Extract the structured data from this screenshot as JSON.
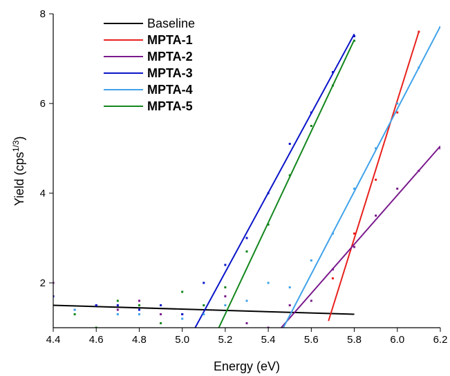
{
  "chart_data": {
    "type": "scatter",
    "xlabel": "Energy (eV)",
    "ylabel_main": "Yield (cps",
    "ylabel_sup": "1/3",
    "ylabel_end": ")",
    "xlim": [
      4.4,
      6.2
    ],
    "ylim": [
      1.0,
      8.0
    ],
    "xticks": [
      "4.4",
      "4.6",
      "4.8",
      "5.0",
      "5.2",
      "5.4",
      "5.6",
      "5.8",
      "6.0",
      "6.2"
    ],
    "yticks": [
      "2",
      "4",
      "6",
      "8"
    ],
    "legend_position": "top-left",
    "series": [
      {
        "name": "Baseline",
        "color": "#000000",
        "bold": false,
        "fit": [
          [
            4.4,
            1.5
          ],
          [
            5.8,
            1.3
          ]
        ],
        "points": []
      },
      {
        "name": "MPTA-1",
        "color": "#e8201c",
        "bold": true,
        "fit": [
          [
            5.68,
            1.15
          ],
          [
            6.1,
            7.6
          ]
        ],
        "points": [
          [
            5.7,
            2.1
          ],
          [
            5.8,
            3.1
          ],
          [
            5.9,
            4.3
          ],
          [
            6.0,
            5.8
          ],
          [
            6.1,
            7.6
          ]
        ]
      },
      {
        "name": "MPTA-2",
        "color": "#7a1a8c",
        "bold": true,
        "fit": [
          [
            5.46,
            1.0
          ],
          [
            6.2,
            5.05
          ]
        ],
        "points": [
          [
            4.4,
            2.0
          ],
          [
            4.5,
            1.4
          ],
          [
            4.6,
            1.5
          ],
          [
            4.7,
            1.4
          ],
          [
            4.8,
            1.6
          ],
          [
            4.9,
            1.3
          ],
          [
            5.0,
            1.3
          ],
          [
            5.2,
            1.7
          ],
          [
            5.3,
            1.1
          ],
          [
            5.4,
            1.0
          ],
          [
            5.5,
            1.5
          ],
          [
            5.6,
            1.6
          ],
          [
            5.7,
            2.3
          ],
          [
            5.8,
            2.8
          ],
          [
            5.9,
            3.5
          ],
          [
            6.0,
            4.1
          ],
          [
            6.1,
            4.5
          ],
          [
            6.2,
            5.0
          ]
        ]
      },
      {
        "name": "MPTA-3",
        "color": "#0a14c8",
        "bold": true,
        "fit": [
          [
            5.06,
            1.0
          ],
          [
            5.8,
            7.55
          ]
        ],
        "points": [
          [
            4.4,
            1.7
          ],
          [
            4.6,
            1.5
          ],
          [
            4.7,
            1.5
          ],
          [
            4.8,
            1.4
          ],
          [
            4.9,
            1.5
          ],
          [
            5.0,
            1.3
          ],
          [
            5.1,
            2.0
          ],
          [
            5.2,
            2.4
          ],
          [
            5.3,
            3.0
          ],
          [
            5.4,
            4.0
          ],
          [
            5.5,
            5.1
          ],
          [
            5.6,
            5.8
          ],
          [
            5.7,
            6.7
          ],
          [
            5.8,
            7.5
          ]
        ]
      },
      {
        "name": "MPTA-4",
        "color": "#3fa2ea",
        "bold": true,
        "fit": [
          [
            5.47,
            1.0
          ],
          [
            6.2,
            7.72
          ]
        ],
        "points": [
          [
            4.5,
            1.4
          ],
          [
            4.7,
            1.3
          ],
          [
            4.8,
            1.3
          ],
          [
            5.0,
            1.2
          ],
          [
            5.1,
            1.3
          ],
          [
            5.2,
            1.5
          ],
          [
            5.3,
            1.6
          ],
          [
            5.4,
            2.0
          ],
          [
            5.5,
            1.9
          ],
          [
            5.6,
            2.5
          ],
          [
            5.7,
            3.1
          ],
          [
            5.8,
            4.1
          ],
          [
            5.9,
            5.0
          ],
          [
            6.0,
            6.0
          ],
          [
            6.1,
            6.8
          ],
          [
            6.2,
            7.7
          ]
        ]
      },
      {
        "name": "MPTA-5",
        "color": "#12861c",
        "bold": true,
        "fit": [
          [
            5.17,
            1.0
          ],
          [
            5.8,
            7.42
          ]
        ],
        "points": [
          [
            4.5,
            1.3
          ],
          [
            4.6,
            1.0
          ],
          [
            4.7,
            1.6
          ],
          [
            4.8,
            1.5
          ],
          [
            4.9,
            1.1
          ],
          [
            5.0,
            1.8
          ],
          [
            5.1,
            1.5
          ],
          [
            5.2,
            1.9
          ],
          [
            5.3,
            2.7
          ],
          [
            5.4,
            3.3
          ],
          [
            5.5,
            4.4
          ],
          [
            5.6,
            5.5
          ],
          [
            5.7,
            6.4
          ],
          [
            5.8,
            7.4
          ]
        ]
      }
    ]
  }
}
